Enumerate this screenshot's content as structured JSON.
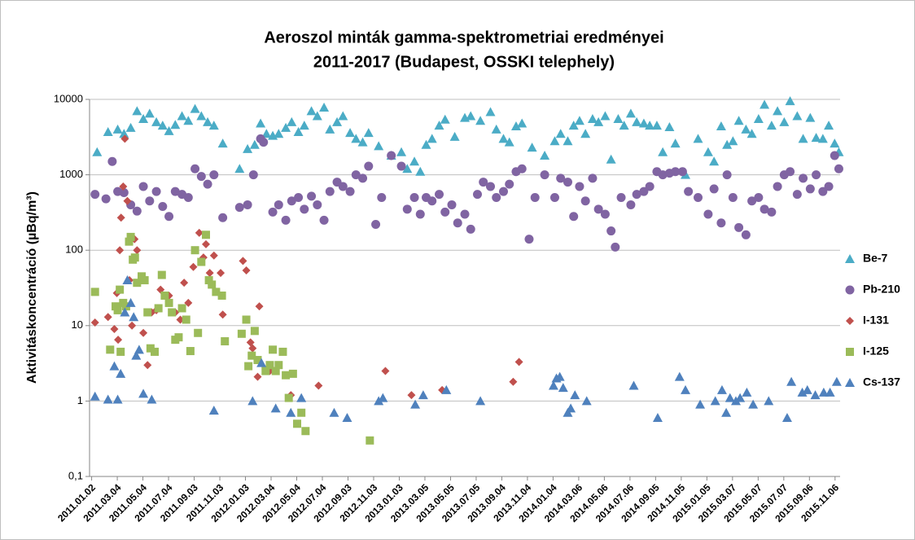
{
  "chart_data": {
    "type": "scatter",
    "title": "Aeroszol minták gamma-spektrometriai eredményei",
    "subtitle": "2011-2017 (Budapest, OSSKI telephely)",
    "y_label": "Aktivitáskoncentráció (µBq/m³)",
    "yscale": "log",
    "ylim": [
      0.1,
      10000
    ],
    "yticks": [
      {
        "value": 0.1,
        "label": "0,1"
      },
      1,
      10,
      100,
      1000,
      10000
    ],
    "xlim": [
      "2010.12.28",
      "2015.11.18"
    ],
    "xticks": [
      "2011.01.02",
      "2011.03.04",
      "2011.05.04",
      "2011.07.04",
      "2011.09.03",
      "2011.11.03",
      "2012.01.03",
      "2012.03.04",
      "2012.05.04",
      "2012.07.04",
      "2012.09.03",
      "2012.11.03",
      "2013.01.03",
      "2013.03.05",
      "2013.05.05",
      "2013.07.05",
      "2013.09.04",
      "2013.11.04",
      "2014.01.04",
      "2014.03.06",
      "2014.05.06",
      "2014.07.06",
      "2014.09.05",
      "2014.11.05",
      "2015.01.05",
      "2015.03.07",
      "2015.05.07",
      "2015.07.07",
      "2015.09.06",
      "2015.11.06"
    ],
    "grid": true,
    "legend": "right",
    "series": [
      {
        "name": "Be-7",
        "color": "#4bacc6",
        "marker": "triangle",
        "x": [
          "2011.01.15",
          "2011.02.10",
          "2011.03.05",
          "2011.03.20",
          "2011.04.05",
          "2011.04.20",
          "2011.05.05",
          "2011.05.20",
          "2011.06.05",
          "2011.06.20",
          "2011.07.05",
          "2011.07.20",
          "2011.08.05",
          "2011.08.20",
          "2011.09.05",
          "2011.09.20",
          "2011.10.05",
          "2011.10.20",
          "2011.11.10",
          "2011.12.20",
          "2012.01.08",
          "2012.01.25",
          "2012.02.08",
          "2012.02.22",
          "2012.03.08",
          "2012.03.22",
          "2012.04.08",
          "2012.04.22",
          "2012.05.08",
          "2012.05.22",
          "2012.06.08",
          "2012.06.22",
          "2012.07.08",
          "2012.07.22",
          "2012.08.08",
          "2012.08.22",
          "2012.09.08",
          "2012.09.22",
          "2012.10.08",
          "2012.10.22",
          "2012.11.15",
          "2012.12.15",
          "2013.01.08",
          "2013.01.22",
          "2013.02.08",
          "2013.02.22",
          "2013.03.08",
          "2013.03.22",
          "2013.04.08",
          "2013.04.22",
          "2013.05.15",
          "2013.06.08",
          "2013.06.22",
          "2013.07.15",
          "2013.08.08",
          "2013.08.22",
          "2013.09.08",
          "2013.09.22",
          "2013.10.08",
          "2013.10.22",
          "2013.11.15",
          "2013.12.15",
          "2014.01.08",
          "2014.01.22",
          "2014.02.08",
          "2014.02.22",
          "2014.03.08",
          "2014.03.22",
          "2014.04.08",
          "2014.04.22",
          "2014.05.08",
          "2014.05.22",
          "2014.06.08",
          "2014.06.22",
          "2014.07.08",
          "2014.07.22",
          "2014.08.08",
          "2014.08.22",
          "2014.09.08",
          "2014.09.22",
          "2014.10.08",
          "2014.10.22",
          "2014.11.15",
          "2014.12.15",
          "2015.01.08",
          "2015.01.22",
          "2015.02.08",
          "2015.02.22",
          "2015.03.08",
          "2015.03.22",
          "2015.04.08",
          "2015.04.22",
          "2015.05.08",
          "2015.05.22",
          "2015.06.08",
          "2015.06.22",
          "2015.07.08",
          "2015.07.22",
          "2015.08.08",
          "2015.08.22",
          "2015.09.08",
          "2015.09.22",
          "2015.10.08",
          "2015.10.22",
          "2015.11.05",
          "2015.11.15"
        ],
        "values": [
          2000,
          3700,
          4000,
          3500,
          4200,
          7000,
          5500,
          6500,
          5000,
          4500,
          3800,
          4600,
          6000,
          5200,
          7500,
          6000,
          5000,
          4500,
          2600,
          1200,
          2200,
          2500,
          4800,
          3500,
          3300,
          3500,
          4200,
          5000,
          3700,
          4500,
          7000,
          6000,
          7800,
          4000,
          5000,
          6000,
          3600,
          3000,
          2700,
          3600,
          2400,
          1800,
          2000,
          1200,
          1500,
          1100,
          2500,
          3000,
          4500,
          5400,
          3200,
          5700,
          6000,
          5200,
          6800,
          4000,
          3000,
          2700,
          4400,
          4800,
          2300,
          1800,
          2800,
          3500,
          2800,
          4500,
          5200,
          3500,
          5500,
          5000,
          6000,
          1600,
          5500,
          4500,
          6500,
          5000,
          4800,
          4500,
          4500,
          2000,
          4300,
          2600,
          1000,
          3000,
          2000,
          1500,
          4400,
          2500,
          2800,
          5200,
          4000,
          3500,
          5500,
          8500,
          4500,
          7000,
          5000,
          9500,
          6000,
          3000,
          5700,
          3100,
          3000,
          4500,
          2600,
          2000
        ]
      },
      {
        "name": "Pb-210",
        "color": "#8064a2",
        "marker": "circle",
        "x": [
          "2011.01.10",
          "2011.02.05",
          "2011.02.20",
          "2011.03.05",
          "2011.03.20",
          "2011.04.05",
          "2011.04.20",
          "2011.05.05",
          "2011.05.20",
          "2011.06.05",
          "2011.06.20",
          "2011.07.05",
          "2011.07.20",
          "2011.08.05",
          "2011.08.20",
          "2011.09.05",
          "2011.09.20",
          "2011.10.05",
          "2011.10.20",
          "2011.11.10",
          "2011.12.20",
          "2012.01.08",
          "2012.01.22",
          "2012.02.08",
          "2012.02.15",
          "2012.03.08",
          "2012.03.22",
          "2012.04.08",
          "2012.04.22",
          "2012.05.08",
          "2012.05.22",
          "2012.06.08",
          "2012.06.22",
          "2012.07.08",
          "2012.07.22",
          "2012.08.08",
          "2012.08.22",
          "2012.09.08",
          "2012.09.22",
          "2012.10.08",
          "2012.10.22",
          "2012.11.08",
          "2012.11.22",
          "2012.12.15",
          "2013.01.08",
          "2013.01.22",
          "2013.02.08",
          "2013.02.22",
          "2013.03.08",
          "2013.03.22",
          "2013.04.08",
          "2013.04.22",
          "2013.05.08",
          "2013.05.22",
          "2013.06.08",
          "2013.06.22",
          "2013.07.08",
          "2013.07.22",
          "2013.08.08",
          "2013.08.22",
          "2013.09.08",
          "2013.09.22",
          "2013.10.08",
          "2013.10.22",
          "2013.11.08",
          "2013.11.22",
          "2013.12.15",
          "2014.01.08",
          "2014.01.22",
          "2014.02.08",
          "2014.02.22",
          "2014.03.08",
          "2014.03.22",
          "2014.04.08",
          "2014.04.22",
          "2014.05.08",
          "2014.05.22",
          "2014.06.01",
          "2014.06.15",
          "2014.07.08",
          "2014.07.22",
          "2014.08.08",
          "2014.08.22",
          "2014.09.08",
          "2014.09.22",
          "2014.10.08",
          "2014.10.22",
          "2014.11.08",
          "2014.11.22",
          "2014.12.15",
          "2015.01.08",
          "2015.01.22",
          "2015.02.08",
          "2015.02.22",
          "2015.03.08",
          "2015.03.22",
          "2015.04.08",
          "2015.04.22",
          "2015.05.08",
          "2015.05.22",
          "2015.06.08",
          "2015.06.22",
          "2015.07.08",
          "2015.07.22",
          "2015.08.08",
          "2015.08.22",
          "2015.09.08",
          "2015.09.22",
          "2015.10.08",
          "2015.10.22",
          "2015.11.05",
          "2015.11.15"
        ],
        "values": [
          550,
          480,
          1500,
          600,
          580,
          400,
          330,
          700,
          450,
          600,
          380,
          280,
          600,
          550,
          500,
          1200,
          950,
          750,
          1000,
          270,
          370,
          400,
          1000,
          3000,
          2700,
          320,
          400,
          250,
          450,
          500,
          350,
          520,
          400,
          250,
          600,
          800,
          700,
          600,
          1000,
          900,
          1300,
          220,
          500,
          1800,
          1300,
          350,
          500,
          300,
          500,
          450,
          550,
          320,
          400,
          230,
          300,
          190,
          550,
          800,
          700,
          500,
          600,
          750,
          1100,
          1200,
          140,
          500,
          1000,
          500,
          900,
          800,
          280,
          700,
          450,
          900,
          350,
          300,
          180,
          110,
          500,
          400,
          550,
          600,
          700,
          1100,
          1000,
          1050,
          1100,
          1100,
          600,
          500,
          300,
          650,
          230,
          1000,
          500,
          200,
          160,
          450,
          500,
          350,
          320,
          700,
          1000,
          1100,
          550,
          900,
          650,
          1000,
          600,
          700,
          1800,
          1200
        ]
      },
      {
        "name": "I-131",
        "color": "#c0504d",
        "marker": "diamond",
        "x": [
          "2011.01.10",
          "2011.02.10",
          "2011.02.25",
          "2011.03.03",
          "2011.03.06",
          "2011.03.10",
          "2011.03.13",
          "2011.03.18",
          "2011.03.22",
          "2011.03.28",
          "2011.04.02",
          "2011.04.08",
          "2011.04.14",
          "2011.04.20",
          "2011.05.05",
          "2011.05.15",
          "2011.05.25",
          "2011.06.05",
          "2011.06.15",
          "2011.07.05",
          "2011.07.20",
          "2011.08.01",
          "2011.08.10",
          "2011.08.20",
          "2011.09.01",
          "2011.09.15",
          "2011.09.25",
          "2011.10.01",
          "2011.10.10",
          "2011.10.20",
          "2011.11.05",
          "2011.11.10",
          "2011.12.28",
          "2012.01.05",
          "2012.01.15",
          "2012.01.20",
          "2012.02.01",
          "2012.02.05",
          "2012.03.01",
          "2012.04.20",
          "2012.06.25",
          "2012.12.01",
          "2013.02.01",
          "2013.04.15",
          "2013.10.01",
          "2013.10.15"
        ],
        "values": [
          11,
          13,
          9,
          27,
          6.5,
          100,
          270,
          700,
          3000,
          450,
          40,
          10,
          140,
          100,
          8,
          3,
          15,
          16,
          30,
          25,
          15,
          12,
          37,
          20,
          60,
          170,
          80,
          120,
          50,
          85,
          50,
          14,
          72,
          54,
          6,
          5,
          2.1,
          18,
          2.5,
          1.2,
          1.6,
          2.5,
          1.2,
          1.4,
          1.8,
          3.3
        ]
      },
      {
        "name": "I-125",
        "color": "#9bbb59",
        "marker": "square",
        "x": [
          "2011.01.10",
          "2011.02.15",
          "2011.02.28",
          "2011.03.05",
          "2011.03.10",
          "2011.03.12",
          "2011.03.18",
          "2011.03.25",
          "2011.04.01",
          "2011.04.05",
          "2011.04.10",
          "2011.04.15",
          "2011.04.20",
          "2011.05.01",
          "2011.05.08",
          "2011.05.15",
          "2011.05.22",
          "2011.06.01",
          "2011.06.10",
          "2011.06.18",
          "2011.06.25",
          "2011.07.05",
          "2011.07.12",
          "2011.07.20",
          "2011.07.28",
          "2011.08.05",
          "2011.08.15",
          "2011.08.25",
          "2011.09.05",
          "2011.09.12",
          "2011.09.20",
          "2011.10.01",
          "2011.10.08",
          "2011.10.15",
          "2011.10.25",
          "2011.11.08",
          "2011.11.15",
          "2011.12.25",
          "2012.01.05",
          "2012.01.10",
          "2012.01.18",
          "2012.01.25",
          "2012.02.01",
          "2012.02.20",
          "2012.03.01",
          "2012.03.08",
          "2012.03.15",
          "2012.03.22",
          "2012.04.01",
          "2012.04.08",
          "2012.04.15",
          "2012.04.25",
          "2012.05.05",
          "2012.05.15",
          "2012.05.25",
          "2012.10.25"
        ],
        "values": [
          28,
          4.8,
          18,
          16,
          30,
          4.5,
          20,
          18,
          130,
          150,
          75,
          80,
          37,
          45,
          40,
          15,
          5,
          4.5,
          17,
          47,
          25,
          20,
          15,
          6.5,
          7,
          17,
          12,
          4.6,
          100,
          8,
          70,
          160,
          40,
          35,
          28,
          25,
          6.2,
          7.8,
          12,
          2.9,
          4,
          8.5,
          3.5,
          2.5,
          3,
          4.8,
          2.5,
          3,
          4.5,
          2.2,
          1.1,
          2.3,
          0.5,
          0.7,
          0.4,
          0.3
        ]
      },
      {
        "name": "Cs-137",
        "color": "#4f81bd",
        "marker": "triangle",
        "x": [
          "2011.01.10",
          "2011.02.10",
          "2011.02.25",
          "2011.03.05",
          "2011.03.12",
          "2011.03.22",
          "2011.03.28",
          "2011.04.05",
          "2011.04.12",
          "2011.04.18",
          "2011.04.25",
          "2011.05.05",
          "2011.05.25",
          "2011.10.20",
          "2012.01.20",
          "2012.02.10",
          "2012.03.15",
          "2012.04.20",
          "2012.05.15",
          "2012.08.01",
          "2012.09.01",
          "2012.11.15",
          "2012.11.25",
          "2013.02.10",
          "2013.03.01",
          "2013.04.25",
          "2013.07.15",
          "2014.01.05",
          "2014.01.12",
          "2014.01.20",
          "2014.01.28",
          "2014.02.08",
          "2014.02.15",
          "2014.02.25",
          "2014.03.25",
          "2014.07.15",
          "2014.09.10",
          "2014.11.01",
          "2014.11.15",
          "2014.12.20",
          "2015.01.25",
          "2015.02.10",
          "2015.02.20",
          "2015.03.01",
          "2015.03.15",
          "2015.03.25",
          "2015.04.10",
          "2015.04.25",
          "2015.06.01",
          "2015.07.15",
          "2015.07.25",
          "2015.08.20",
          "2015.09.01",
          "2015.09.20",
          "2015.10.10",
          "2015.10.25",
          "2015.11.10"
        ],
        "values": [
          1.15,
          1.05,
          2.9,
          1.05,
          2.3,
          15,
          40,
          20,
          13,
          4,
          4.8,
          1.25,
          1.05,
          0.75,
          1,
          3.2,
          0.8,
          0.7,
          1.1,
          0.7,
          0.6,
          1,
          1.1,
          0.9,
          1.2,
          1.4,
          1,
          1.6,
          2,
          2.1,
          1.5,
          0.7,
          0.8,
          1.2,
          1,
          1.6,
          0.6,
          2.1,
          1.4,
          0.9,
          1,
          1.4,
          0.7,
          1.1,
          1,
          1.1,
          1.3,
          0.9,
          1,
          0.6,
          1.8,
          1.3,
          1.4,
          1.2,
          1.3,
          1.3,
          1.8
        ]
      }
    ]
  }
}
